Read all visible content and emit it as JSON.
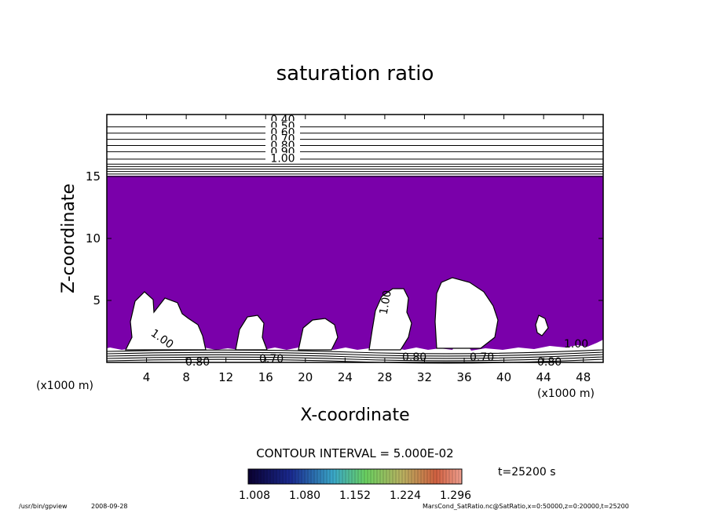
{
  "chart_data": {
    "type": "contour",
    "title": "saturation ratio",
    "xlabel": "X-coordinate",
    "ylabel": "Z-coordinate",
    "x_unit": "(x1000 m)",
    "xlim": [
      0,
      50
    ],
    "ylim": [
      0,
      20
    ],
    "x_ticks": [
      "4",
      "8",
      "12",
      "16",
      "20",
      "24",
      "28",
      "32",
      "36",
      "40",
      "44",
      "48"
    ],
    "y_ticks": [
      "5",
      "10",
      "15"
    ],
    "upper_contour_labels": [
      "0.40",
      "0.50",
      "0.60",
      "0.70",
      "0.80",
      "0.90",
      "1.00"
    ],
    "upper_contour_levels_z": [
      19.0,
      18.5,
      18.0,
      17.5,
      17.0,
      16.4,
      16.0,
      15.8,
      15.6,
      15.4,
      15.2,
      15.0
    ],
    "inline_labels": [
      "1.00",
      "1.00",
      "1.00",
      "0.80",
      "0.70",
      "0.80",
      "0.80",
      "0.70"
    ],
    "fill_region_z": [
      1.2,
      15.0
    ],
    "contour_interval": "CONTOUR INTERVAL = 5.000E-02",
    "colorbar_ticks": [
      "1.008",
      "1.080",
      "1.152",
      "1.224",
      "1.296"
    ],
    "colors": {
      "supersaturated_fill": "#7a00aa"
    }
  },
  "time_label": "t=25200 s",
  "footer": {
    "program": "/usr/bin/gpview",
    "date": "2008-09-28",
    "source": "MarsCond_SatRatio.nc@SatRatio,x=0:50000,z=0:20000,t=25200"
  }
}
